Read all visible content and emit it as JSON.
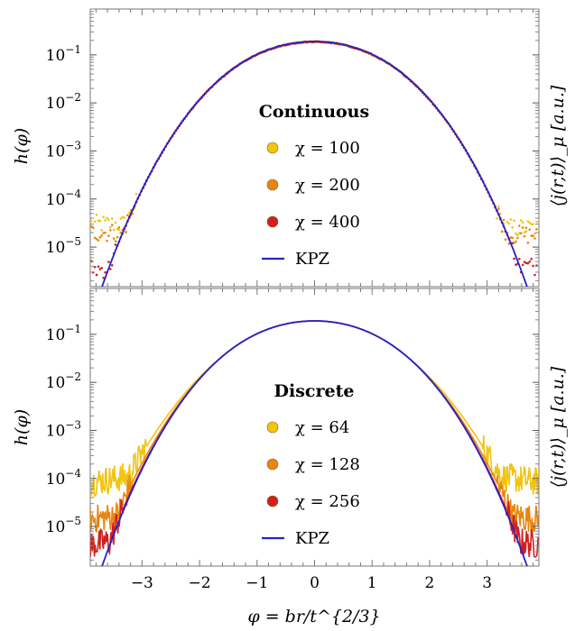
{
  "figure": {
    "xlabel": "φ = br/t^{2/3}",
    "ylabel_left": "h(φ)",
    "ylabel_right": "⟨j(r,t)⟩_μ [a.u.]"
  },
  "chart_data": [
    {
      "type": "scatter",
      "panel": "top",
      "yscale": "log",
      "xlim": [
        -3.9,
        3.9
      ],
      "ylim": [
        1.5e-06,
        0.9
      ],
      "y_ticks": [
        {
          "value": 0.1,
          "base": "10",
          "exp": "−1"
        },
        {
          "value": 0.01,
          "base": "10",
          "exp": "−2"
        },
        {
          "value": 0.001,
          "base": "10",
          "exp": "−3"
        },
        {
          "value": 0.0001,
          "base": "10",
          "exp": "−4"
        },
        {
          "value": 1e-05,
          "base": "10",
          "exp": "−5"
        }
      ],
      "legend_title": "Continuous",
      "legend_position": "center",
      "series": [
        {
          "name": "χ = 100",
          "kind": "points",
          "color": "#f2c40f",
          "tail_left": 3e-05,
          "tail_right": 2.5e-05
        },
        {
          "name": "χ = 200",
          "kind": "points",
          "color": "#e8850f",
          "tail_left": 2e-05,
          "tail_right": 1.8e-05
        },
        {
          "name": "χ = 400",
          "kind": "points",
          "color": "#d11f1f",
          "tail_left": 3.5e-06,
          "tail_right": 4e-06
        },
        {
          "name": "KPZ",
          "kind": "line",
          "color": "#2424c8"
        }
      ]
    },
    {
      "type": "scatter",
      "panel": "bottom",
      "yscale": "log",
      "xlim": [
        -3.9,
        3.9
      ],
      "ylim": [
        1.5e-06,
        0.9
      ],
      "x_ticks": [
        -3,
        -2,
        -1,
        0,
        1,
        2,
        3
      ],
      "y_ticks": [
        {
          "value": 0.1,
          "base": "10",
          "exp": "−1"
        },
        {
          "value": 0.01,
          "base": "10",
          "exp": "−2"
        },
        {
          "value": 0.001,
          "base": "10",
          "exp": "−3"
        },
        {
          "value": 0.0001,
          "base": "10",
          "exp": "−4"
        },
        {
          "value": 1e-05,
          "base": "10",
          "exp": "−5"
        }
      ],
      "legend_title": "Discrete",
      "legend_position": "center",
      "series": [
        {
          "name": "χ = 64",
          "kind": "line",
          "color": "#f2c40f"
        },
        {
          "name": "χ = 128",
          "kind": "line",
          "color": "#e8850f"
        },
        {
          "name": "χ = 256",
          "kind": "line",
          "color": "#d11f1f"
        },
        {
          "name": "KPZ",
          "kind": "line",
          "color": "#2424c8"
        }
      ]
    }
  ]
}
